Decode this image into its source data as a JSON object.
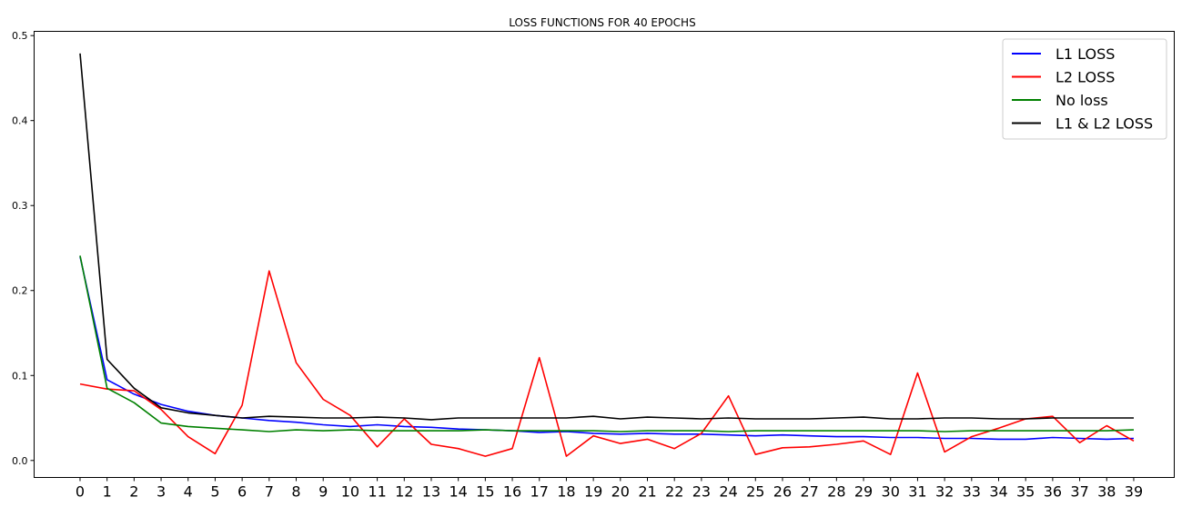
{
  "chart_data": {
    "type": "line",
    "title": "LOSS FUNCTIONS FOR 40 EPOCHS",
    "xlabel": "",
    "ylabel": "",
    "x": [
      0,
      1,
      2,
      3,
      4,
      5,
      6,
      7,
      8,
      9,
      10,
      11,
      12,
      13,
      14,
      15,
      16,
      17,
      18,
      19,
      20,
      21,
      22,
      23,
      24,
      25,
      26,
      27,
      28,
      29,
      30,
      31,
      32,
      33,
      34,
      35,
      36,
      37,
      38,
      39
    ],
    "x_tick_labels": [
      "0",
      "1",
      "2",
      "3",
      "4",
      "5",
      "6",
      "7",
      "8",
      "9",
      "10",
      "11",
      "12",
      "13",
      "14",
      "15",
      "16",
      "17",
      "18",
      "19",
      "20",
      "21",
      "22",
      "23",
      "24",
      "25",
      "26",
      "27",
      "28",
      "29",
      "30",
      "31",
      "32",
      "33",
      "34",
      "35",
      "36",
      "37",
      "38",
      "39"
    ],
    "y_ticks": [
      0.0,
      0.1,
      0.2,
      0.3,
      0.4,
      0.5
    ],
    "y_tick_labels": [
      "0.0",
      "0.1",
      "0.2",
      "0.3",
      "0.4",
      "0.5"
    ],
    "ylim": [
      -0.02,
      0.505
    ],
    "xlim": [
      -1.7,
      40.5
    ],
    "grid": false,
    "legend_position": "top-right",
    "series": [
      {
        "name": "L1 LOSS",
        "color": "#0000ff",
        "values": [
          0.24,
          0.095,
          0.078,
          0.066,
          0.058,
          0.053,
          0.05,
          0.047,
          0.045,
          0.042,
          0.04,
          0.042,
          0.04,
          0.039,
          0.037,
          0.036,
          0.035,
          0.033,
          0.034,
          0.032,
          0.031,
          0.032,
          0.031,
          0.031,
          0.03,
          0.029,
          0.03,
          0.029,
          0.028,
          0.028,
          0.027,
          0.027,
          0.026,
          0.026,
          0.025,
          0.025,
          0.027,
          0.026,
          0.025,
          0.026
        ]
      },
      {
        "name": "L2 LOSS",
        "color": "#ff0000",
        "values": [
          0.09,
          0.084,
          0.082,
          0.06,
          0.028,
          0.008,
          0.065,
          0.223,
          0.115,
          0.072,
          0.053,
          0.016,
          0.049,
          0.019,
          0.014,
          0.005,
          0.014,
          0.121,
          0.005,
          0.029,
          0.02,
          0.025,
          0.014,
          0.032,
          0.076,
          0.007,
          0.015,
          0.016,
          0.019,
          0.023,
          0.007,
          0.103,
          0.01,
          0.028,
          0.038,
          0.049,
          0.052,
          0.021,
          0.041,
          0.023
        ]
      },
      {
        "name": "No loss",
        "color": "#008000",
        "values": [
          0.241,
          0.085,
          0.068,
          0.044,
          0.04,
          0.038,
          0.036,
          0.034,
          0.036,
          0.035,
          0.036,
          0.035,
          0.035,
          0.035,
          0.035,
          0.036,
          0.035,
          0.035,
          0.035,
          0.035,
          0.034,
          0.035,
          0.035,
          0.035,
          0.034,
          0.035,
          0.035,
          0.035,
          0.035,
          0.035,
          0.035,
          0.035,
          0.034,
          0.035,
          0.035,
          0.035,
          0.035,
          0.035,
          0.035,
          0.036
        ]
      },
      {
        "name": "L1 & L2 LOSS",
        "color": "#000000",
        "values": [
          0.479,
          0.119,
          0.085,
          0.062,
          0.056,
          0.053,
          0.05,
          0.052,
          0.051,
          0.05,
          0.05,
          0.051,
          0.05,
          0.048,
          0.05,
          0.05,
          0.05,
          0.05,
          0.05,
          0.052,
          0.049,
          0.051,
          0.05,
          0.049,
          0.05,
          0.049,
          0.049,
          0.049,
          0.05,
          0.051,
          0.049,
          0.049,
          0.05,
          0.05,
          0.049,
          0.049,
          0.05,
          0.05,
          0.05,
          0.05
        ]
      }
    ]
  }
}
